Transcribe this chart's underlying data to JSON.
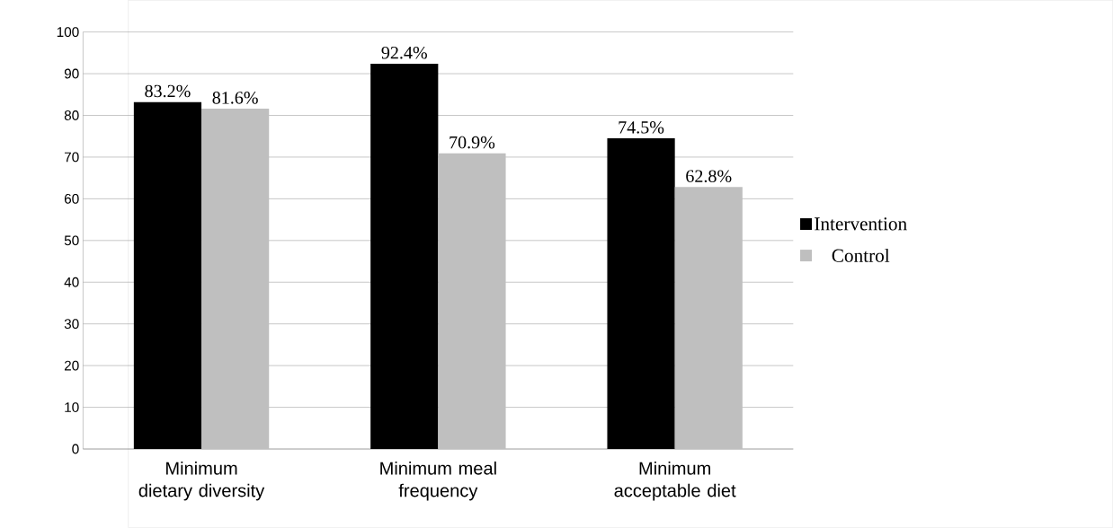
{
  "chart_data": {
    "type": "bar",
    "categories": [
      "Minimum dietary diversity",
      "Minimum meal frequency",
      "Minimum acceptable diet"
    ],
    "series": [
      {
        "name": "Intervention",
        "color": "#000000",
        "values": [
          83.2,
          92.4,
          74.5
        ],
        "value_labels": [
          "83.2%",
          "92.4%",
          "74.5%"
        ]
      },
      {
        "name": "Control",
        "color": "#bfbfbf",
        "values": [
          81.6,
          70.9,
          62.8
        ],
        "value_labels": [
          "81.6%",
          "70.9%",
          "62.8%"
        ]
      }
    ],
    "ylim": [
      0,
      100
    ],
    "yticks": [
      0,
      10,
      20,
      30,
      40,
      50,
      60,
      70,
      80,
      90,
      100
    ],
    "grid": "y",
    "legend": "right"
  }
}
